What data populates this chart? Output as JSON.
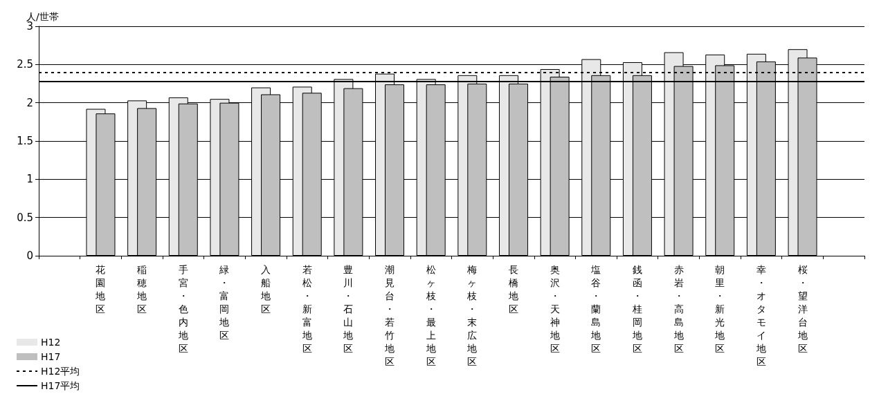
{
  "chart_data": {
    "type": "bar",
    "ylabel": "人/世帯",
    "categories": [
      null,
      "花園地区",
      "稲穂地区",
      "手宮・色内地区",
      "緑・富岡地区",
      "入船地区",
      "若松・新富地区",
      "豊川・石山地区",
      "潮見台・若竹地区",
      "松ヶ枝・最上地区",
      "梅ヶ枝・末広地区",
      "長橋地区",
      "奥沢・天神地区",
      "塩谷・蘭島地区",
      "銭函・桂岡地区",
      "赤岩・高島地区",
      "朝里・新光地区",
      "幸・オタモイ地区",
      "桜・望洋台地区",
      null
    ],
    "series": [
      {
        "name": "H12",
        "color": "#e8e8e8",
        "values": [
          null,
          1.92,
          2.03,
          2.07,
          2.05,
          2.2,
          2.21,
          2.31,
          2.38,
          2.31,
          2.36,
          2.36,
          2.44,
          2.57,
          2.53,
          2.66,
          2.63,
          2.64,
          2.7,
          null
        ]
      },
      {
        "name": "H17",
        "color": "#bfbfbf",
        "values": [
          null,
          1.86,
          1.93,
          1.99,
          2.0,
          2.11,
          2.13,
          2.19,
          2.24,
          2.24,
          2.25,
          2.25,
          2.34,
          2.36,
          2.36,
          2.48,
          2.49,
          2.54,
          2.59,
          null
        ]
      }
    ],
    "ref_lines": [
      {
        "axis": "y",
        "value": 2.4,
        "label": "H12平均",
        "color": "#000000",
        "line_style": "dashed"
      },
      {
        "axis": "y",
        "value": 2.28,
        "label": "H17平均",
        "color": "#000000",
        "line_style": "solid"
      }
    ],
    "ylim": [
      0,
      3
    ],
    "yticks": [
      0,
      0.5,
      1,
      1.5,
      2,
      2.5,
      3
    ],
    "grid": "y",
    "legend": "bottom left"
  }
}
